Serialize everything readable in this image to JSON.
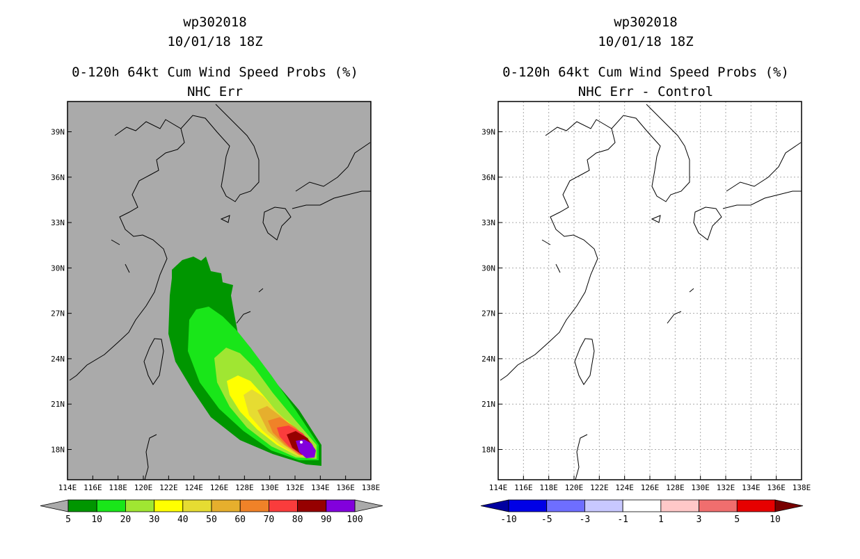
{
  "chart_data": [
    {
      "type": "heatmap",
      "panel": "left",
      "title_lines": [
        "wp302018",
        "10/01/18 18Z",
        "0-120h 64kt Cum Wind Speed Probs (%)",
        "NHC Err"
      ],
      "x_axis": {
        "range": [
          114,
          138
        ],
        "ticks": [
          "114E",
          "116E",
          "118E",
          "120E",
          "122E",
          "124E",
          "126E",
          "128E",
          "130E",
          "132E",
          "134E",
          "136E",
          "138E"
        ]
      },
      "y_axis": {
        "range": [
          16,
          41
        ],
        "ticks": [
          "18N",
          "21N",
          "24N",
          "27N",
          "30N",
          "33N",
          "36N",
          "39N"
        ]
      },
      "grid": false,
      "background": "#aaaaaa",
      "colorbar": {
        "labels": [
          "5",
          "10",
          "20",
          "30",
          "40",
          "50",
          "60",
          "70",
          "80",
          "90",
          "100"
        ],
        "colors": [
          "#009600",
          "#19e619",
          "#a0e632",
          "#ffff00",
          "#e6dc32",
          "#e6af2d",
          "#f08228",
          "#fa3c3c",
          "#960000",
          "#8200dc"
        ]
      },
      "contour_levels": [
        5,
        10,
        20,
        30,
        40,
        50,
        60,
        70,
        80,
        90
      ],
      "storm_position": [
        133.6,
        17.4
      ],
      "track_direction": "northwest"
    },
    {
      "type": "heatmap",
      "panel": "right",
      "title_lines": [
        "wp302018",
        "10/01/18 18Z",
        "0-120h 64kt Cum Wind Speed Probs (%)",
        "NHC Err - Control"
      ],
      "x_axis": {
        "range": [
          114,
          138
        ],
        "ticks": [
          "114E",
          "116E",
          "118E",
          "120E",
          "122E",
          "124E",
          "126E",
          "128E",
          "130E",
          "132E",
          "134E",
          "136E",
          "138E"
        ]
      },
      "y_axis": {
        "range": [
          16,
          41
        ],
        "ticks": [
          "18N",
          "21N",
          "24N",
          "27N",
          "30N",
          "33N",
          "36N",
          "39N"
        ]
      },
      "grid": true,
      "background": "#ffffff",
      "colorbar": {
        "labels": [
          "-10",
          "-5",
          "-3",
          "-1",
          "1",
          "3",
          "5",
          "10"
        ],
        "colors": [
          "#0000e6",
          "#6e6eff",
          "#c8c8ff",
          "#ffffff",
          "#ffc8c8",
          "#f06e6e",
          "#e60000"
        ],
        "low_extend": "#0000a0",
        "high_extend": "#780000"
      }
    }
  ]
}
